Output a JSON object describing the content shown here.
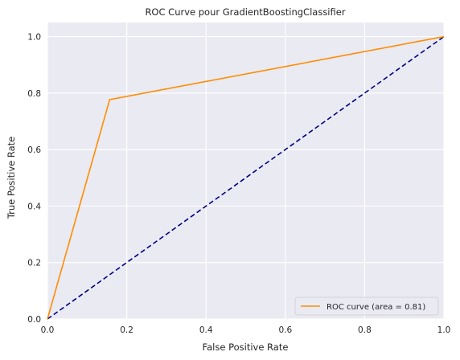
{
  "chart_data": {
    "type": "line",
    "title": "ROC Curve pour GradientBoostingClassifier",
    "xlabel": "False Positive Rate",
    "ylabel": "True Positive Rate",
    "xlim": [
      0.0,
      1.0
    ],
    "ylim": [
      0.0,
      1.05
    ],
    "grid": true,
    "legend_position": "lower-right",
    "x_ticks": [
      "0.0",
      "0.2",
      "0.4",
      "0.6",
      "0.8",
      "1.0"
    ],
    "y_ticks": [
      "0.0",
      "0.2",
      "0.4",
      "0.6",
      "0.8",
      "1.0"
    ],
    "series": [
      {
        "name": "ROC curve (area = 0.81)",
        "color": "#ff8c00",
        "style": "solid",
        "x": [
          0.0,
          0.157,
          1.0
        ],
        "y": [
          0.0,
          0.777,
          1.0
        ]
      },
      {
        "color": "#000080",
        "style": "dashed",
        "x": [
          0.0,
          1.0
        ],
        "y": [
          0.0,
          1.0
        ]
      }
    ],
    "background_color": "#eaeaf2",
    "grid_color": "#ffffff"
  }
}
